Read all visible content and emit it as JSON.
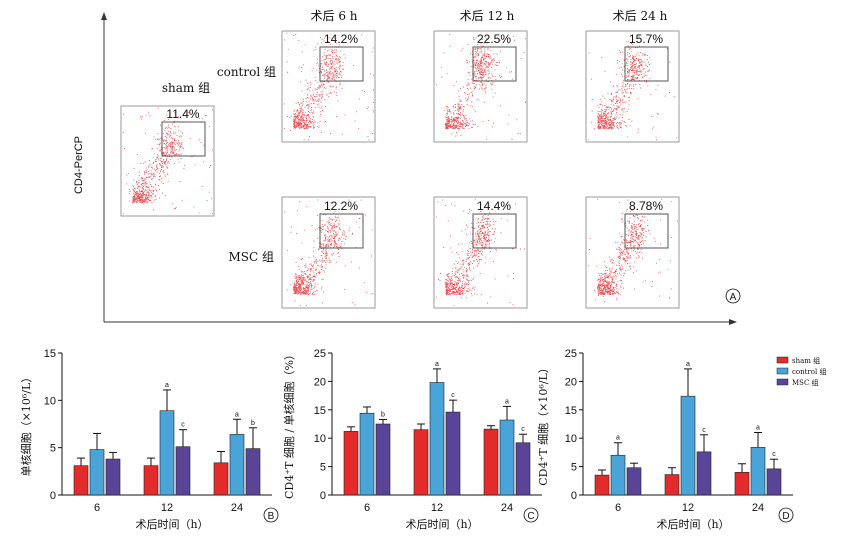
{
  "panel_a": {
    "y_axis_label": "CD4-PerCP",
    "col_headers": [
      "术后 6 h",
      "术后 12 h",
      "术后 24 h"
    ],
    "row_labels": [
      "control 组",
      "MSC 组"
    ],
    "sham_label": "sham 组",
    "panel_letter": "A",
    "sham_value": "11.4%",
    "control_values": [
      "14.2%",
      "22.5%",
      "15.7%"
    ],
    "msc_values": [
      "12.2%",
      "14.4%",
      "8.78%"
    ],
    "dot_color": "#e8262b"
  },
  "legend": {
    "items": [
      {
        "label": "sham 组",
        "color": "#e32b2b"
      },
      {
        "label": "control 组",
        "color": "#4aa4d8"
      },
      {
        "label": "MSC 组",
        "color": "#5a4498"
      }
    ]
  },
  "chart_data": [
    {
      "type": "bar",
      "panel_letter": "B",
      "categories": [
        "6",
        "12",
        "24"
      ],
      "series": [
        {
          "name": "sham 组",
          "values": [
            3.1,
            3.1,
            3.4
          ],
          "errors": [
            0.8,
            0.8,
            1.2
          ]
        },
        {
          "name": "control 组",
          "values": [
            4.8,
            8.9,
            6.4
          ],
          "errors": [
            1.7,
            2.2,
            1.6
          ]
        },
        {
          "name": "MSC 组",
          "values": [
            3.8,
            5.1,
            4.9
          ],
          "errors": [
            0.7,
            1.8,
            2.2
          ]
        }
      ],
      "sig": [
        [
          "",
          "",
          ""
        ],
        [
          "",
          "a",
          "a"
        ],
        [
          "",
          "c",
          "b"
        ]
      ],
      "ylim": [
        0,
        15
      ],
      "yticks": [
        0,
        5,
        10,
        15
      ],
      "ylabel": "单核细胞（×10⁶/L）",
      "xlabel": "术后时间（h）"
    },
    {
      "type": "bar",
      "panel_letter": "C",
      "categories": [
        "6",
        "12",
        "24"
      ],
      "series": [
        {
          "name": "sham 组",
          "values": [
            11.2,
            11.5,
            11.6
          ],
          "errors": [
            0.8,
            1.0,
            0.6
          ]
        },
        {
          "name": "control 组",
          "values": [
            14.4,
            19.8,
            13.2
          ],
          "errors": [
            1.1,
            2.4,
            2.4
          ]
        },
        {
          "name": "MSC 组",
          "values": [
            12.5,
            14.6,
            9.2
          ],
          "errors": [
            0.8,
            2.1,
            1.5
          ]
        }
      ],
      "sig": [
        [
          "",
          "",
          ""
        ],
        [
          "",
          "a",
          "a"
        ],
        [
          "b",
          "c",
          "c"
        ]
      ],
      "ylim": [
        0,
        25
      ],
      "yticks": [
        0,
        5,
        10,
        15,
        20,
        25
      ],
      "ylabel": "CD4⁺T 细胞 / 单核细胞（%）",
      "xlabel": "术后时间（h）"
    },
    {
      "type": "bar",
      "panel_letter": "D",
      "categories": [
        "6",
        "12",
        "24"
      ],
      "series": [
        {
          "name": "sham 组",
          "values": [
            3.5,
            3.6,
            4.0
          ],
          "errors": [
            0.9,
            1.2,
            1.5
          ]
        },
        {
          "name": "control 组",
          "values": [
            7.0,
            17.4,
            8.4
          ],
          "errors": [
            2.2,
            4.8,
            2.6
          ]
        },
        {
          "name": "MSC 组",
          "values": [
            4.8,
            7.6,
            4.6
          ],
          "errors": [
            0.8,
            3.0,
            1.7
          ]
        }
      ],
      "sig": [
        [
          "",
          "",
          ""
        ],
        [
          "a",
          "a",
          "a"
        ],
        [
          "",
          "c",
          "c"
        ]
      ],
      "ylim": [
        0,
        25
      ],
      "yticks": [
        0,
        5,
        10,
        15,
        20,
        25
      ],
      "ylabel": "CD4⁺T 细胞（×10⁶/L）",
      "xlabel": "术后时间（h）"
    }
  ]
}
